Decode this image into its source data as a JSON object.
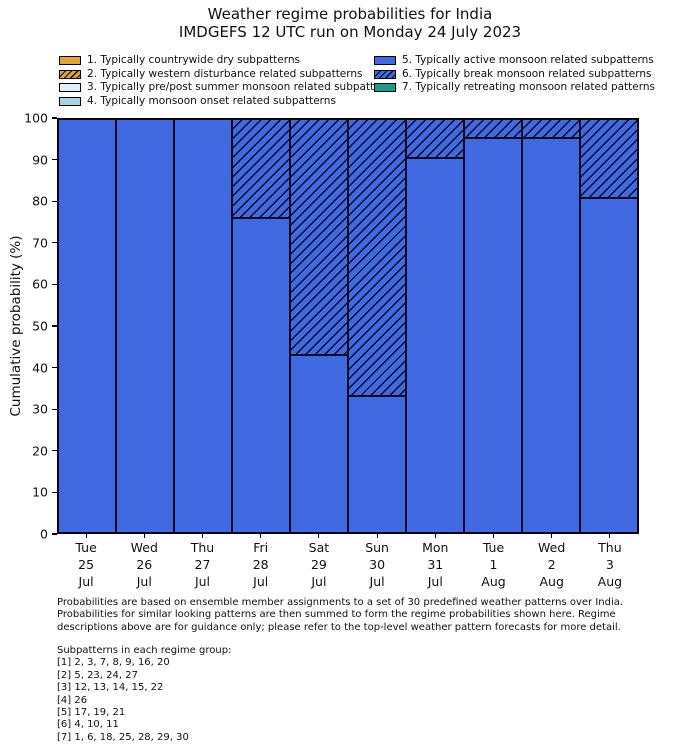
{
  "title": {
    "line1": "Weather regime probabilities for India",
    "line2": "IMDGEFS 12 UTC run on Monday 24 July 2023"
  },
  "legend": {
    "items": [
      {
        "label": "1. Typically countrywide dry subpatterns",
        "color": "#E3A33B",
        "hatch": false
      },
      {
        "label": "2. Typically western disturbance related subpatterns",
        "color": "#E3A33B",
        "hatch": true
      },
      {
        "label": "3. Typically pre/post summer monsoon related subpatterns",
        "color": "#DEF1F8",
        "hatch": false
      },
      {
        "label": "4. Typically monsoon onset related subpatterns",
        "color": "#A8D3E3",
        "hatch": false
      },
      {
        "label": "5. Typically active monsoon related subpatterns",
        "color": "#4169E1",
        "hatch": false
      },
      {
        "label": "6. Typically break monsoon related subpatterns",
        "color": "#4169E1",
        "hatch": true
      },
      {
        "label": "7. Typically retreating monsoon related patterns",
        "color": "#1A9C8C",
        "hatch": false
      }
    ]
  },
  "chart_data": {
    "type": "bar",
    "stacked": true,
    "title": "Weather regime probabilities for India — IMDGEFS 12 UTC run on Monday 24 July 2023",
    "ylabel": "Cumulative probability (%)",
    "ylim": [
      0,
      100
    ],
    "yticks": [
      0,
      10,
      20,
      30,
      40,
      50,
      60,
      70,
      80,
      90,
      100
    ],
    "grid": false,
    "legend_position": "top",
    "categories": [
      {
        "day": "Tue",
        "date": "25",
        "month": "Jul"
      },
      {
        "day": "Wed",
        "date": "26",
        "month": "Jul"
      },
      {
        "day": "Thu",
        "date": "27",
        "month": "Jul"
      },
      {
        "day": "Fri",
        "date": "28",
        "month": "Jul"
      },
      {
        "day": "Sat",
        "date": "29",
        "month": "Jul"
      },
      {
        "day": "Sun",
        "date": "30",
        "month": "Jul"
      },
      {
        "day": "Mon",
        "date": "31",
        "month": "Jul"
      },
      {
        "day": "Tue",
        "date": "1",
        "month": "Aug"
      },
      {
        "day": "Wed",
        "date": "2",
        "month": "Aug"
      },
      {
        "day": "Thu",
        "date": "3",
        "month": "Aug"
      }
    ],
    "series": [
      {
        "name": "5. Typically active monsoon related subpatterns",
        "color": "#4169E1",
        "hatch": false,
        "values": [
          100,
          100,
          100,
          76,
          43,
          33,
          90.5,
          95.5,
          95.5,
          81
        ]
      },
      {
        "name": "6. Typically break monsoon related subpatterns",
        "color": "#4169E1",
        "hatch": true,
        "values": [
          0,
          0,
          0,
          24,
          57,
          67,
          9.5,
          4.5,
          4.5,
          19
        ]
      }
    ]
  },
  "footer": {
    "lines": [
      "Probabilities are based on ensemble member assignments to a set of 30 predefined weather patterns over India.",
      "Probabilities for similar looking patterns are then summed to form the regime probabilities shown here. Regime",
      "descriptions above are for guidance only; please refer to the top-level weather pattern forecasts for more detail."
    ]
  },
  "subpatterns": {
    "header": "Subpatterns in each regime group:",
    "lines": [
      "[1] 2, 3, 7, 8, 9, 16, 20",
      "[2] 5, 23, 24, 27",
      "[3] 12, 13, 14, 15, 22",
      "[4] 26",
      "[5] 17, 19, 21",
      "[6] 4, 10, 11",
      "[7] 1, 6, 18, 25, 28, 29, 30"
    ]
  }
}
